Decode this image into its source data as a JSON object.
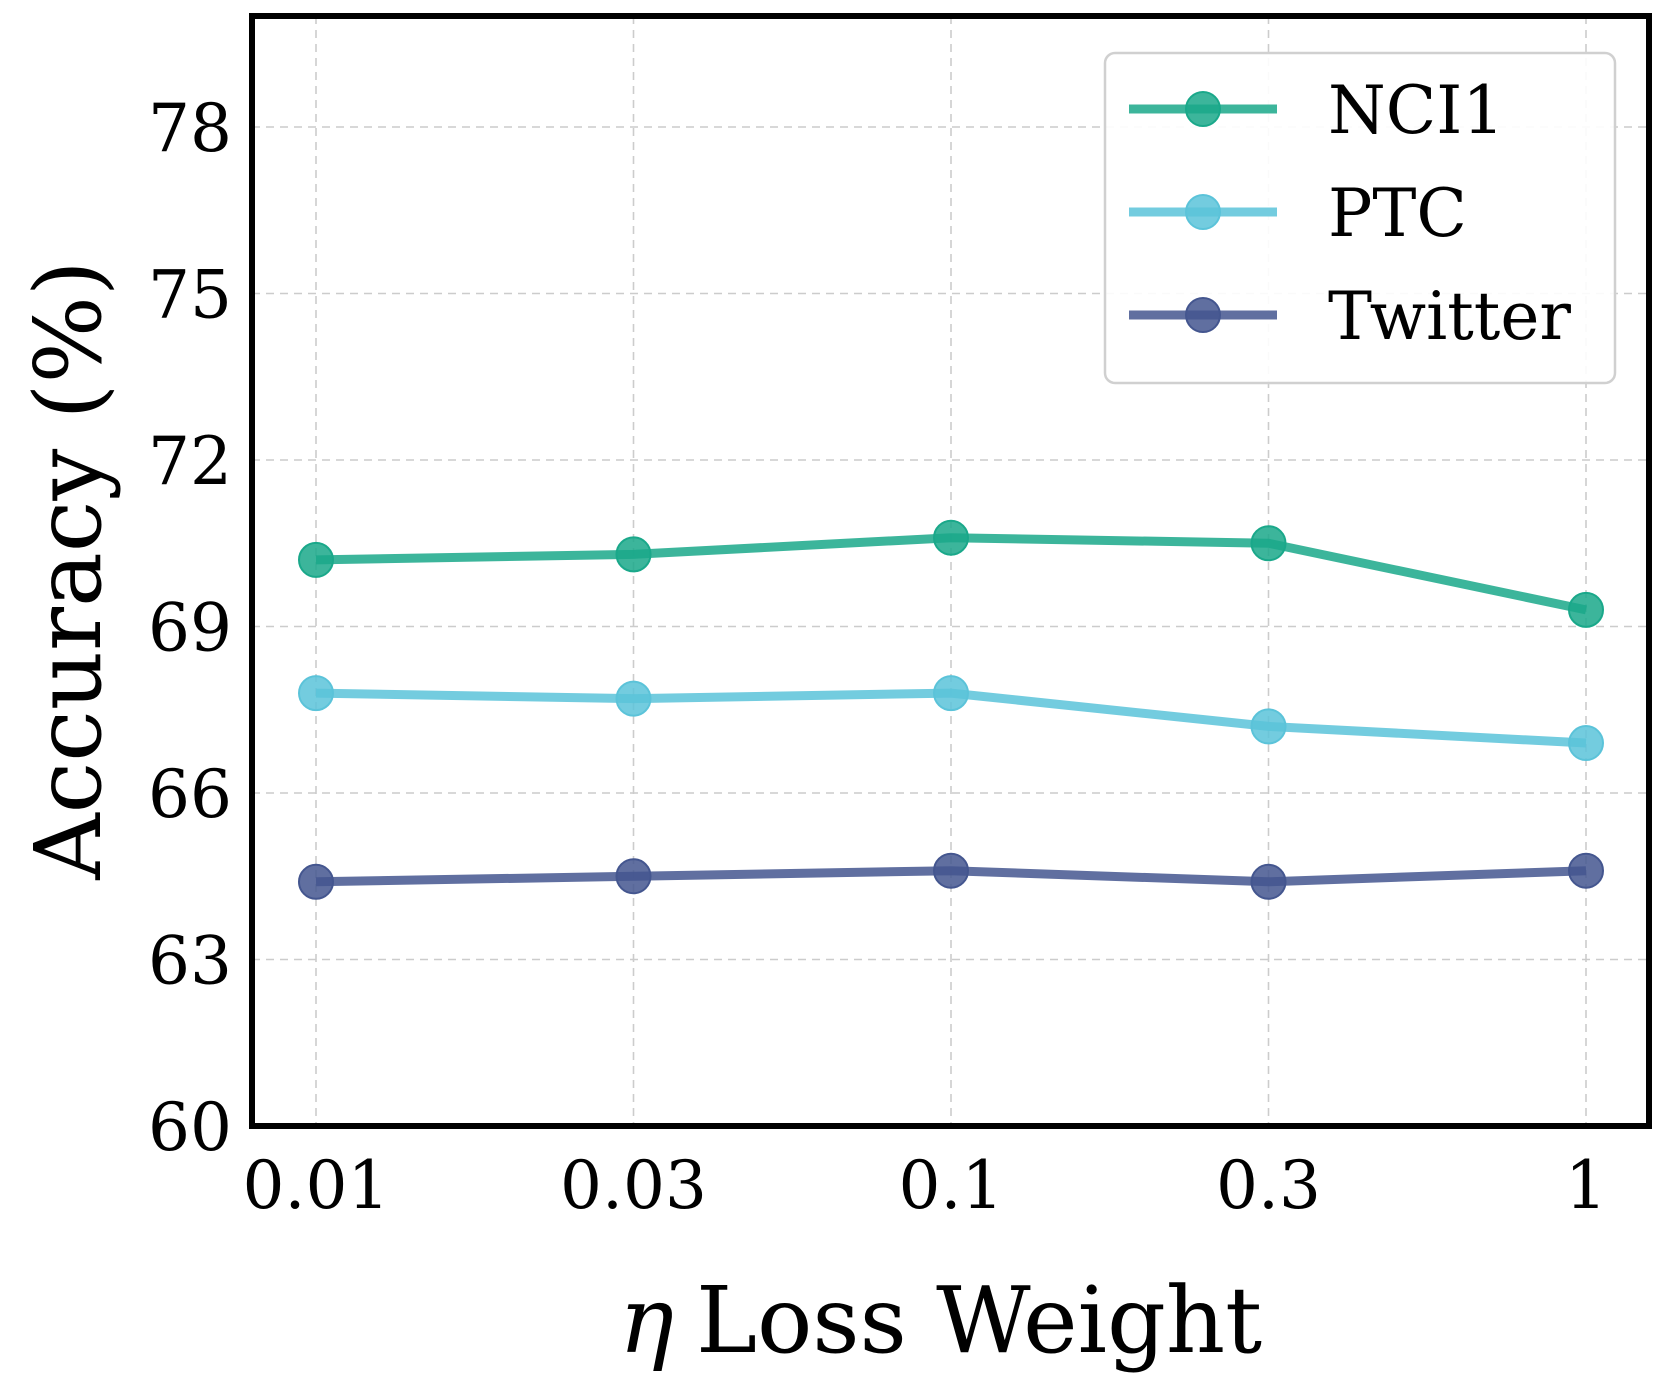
{
  "chart_data": {
    "type": "line",
    "title": "",
    "xlabel_symbol": "η",
    "xlabel_text": "Loss Weight",
    "ylabel": "Accuracy (%)",
    "categories": [
      "0.01",
      "0.03",
      "0.1",
      "0.3",
      "1"
    ],
    "ylim": [
      60,
      80
    ],
    "yticks": [
      60,
      63,
      66,
      69,
      72,
      75,
      78
    ],
    "grid": true,
    "legend_position": "top-right",
    "series": [
      {
        "name": "NCI1",
        "color": "#1aa88a",
        "values": [
          70.2,
          70.3,
          70.6,
          70.5,
          69.3
        ]
      },
      {
        "name": "PTC",
        "color": "#5bc3d9",
        "values": [
          67.8,
          67.7,
          67.8,
          67.2,
          66.9
        ]
      },
      {
        "name": "Twitter",
        "color": "#44568f",
        "values": [
          64.4,
          64.5,
          64.6,
          64.4,
          64.6
        ]
      }
    ]
  }
}
